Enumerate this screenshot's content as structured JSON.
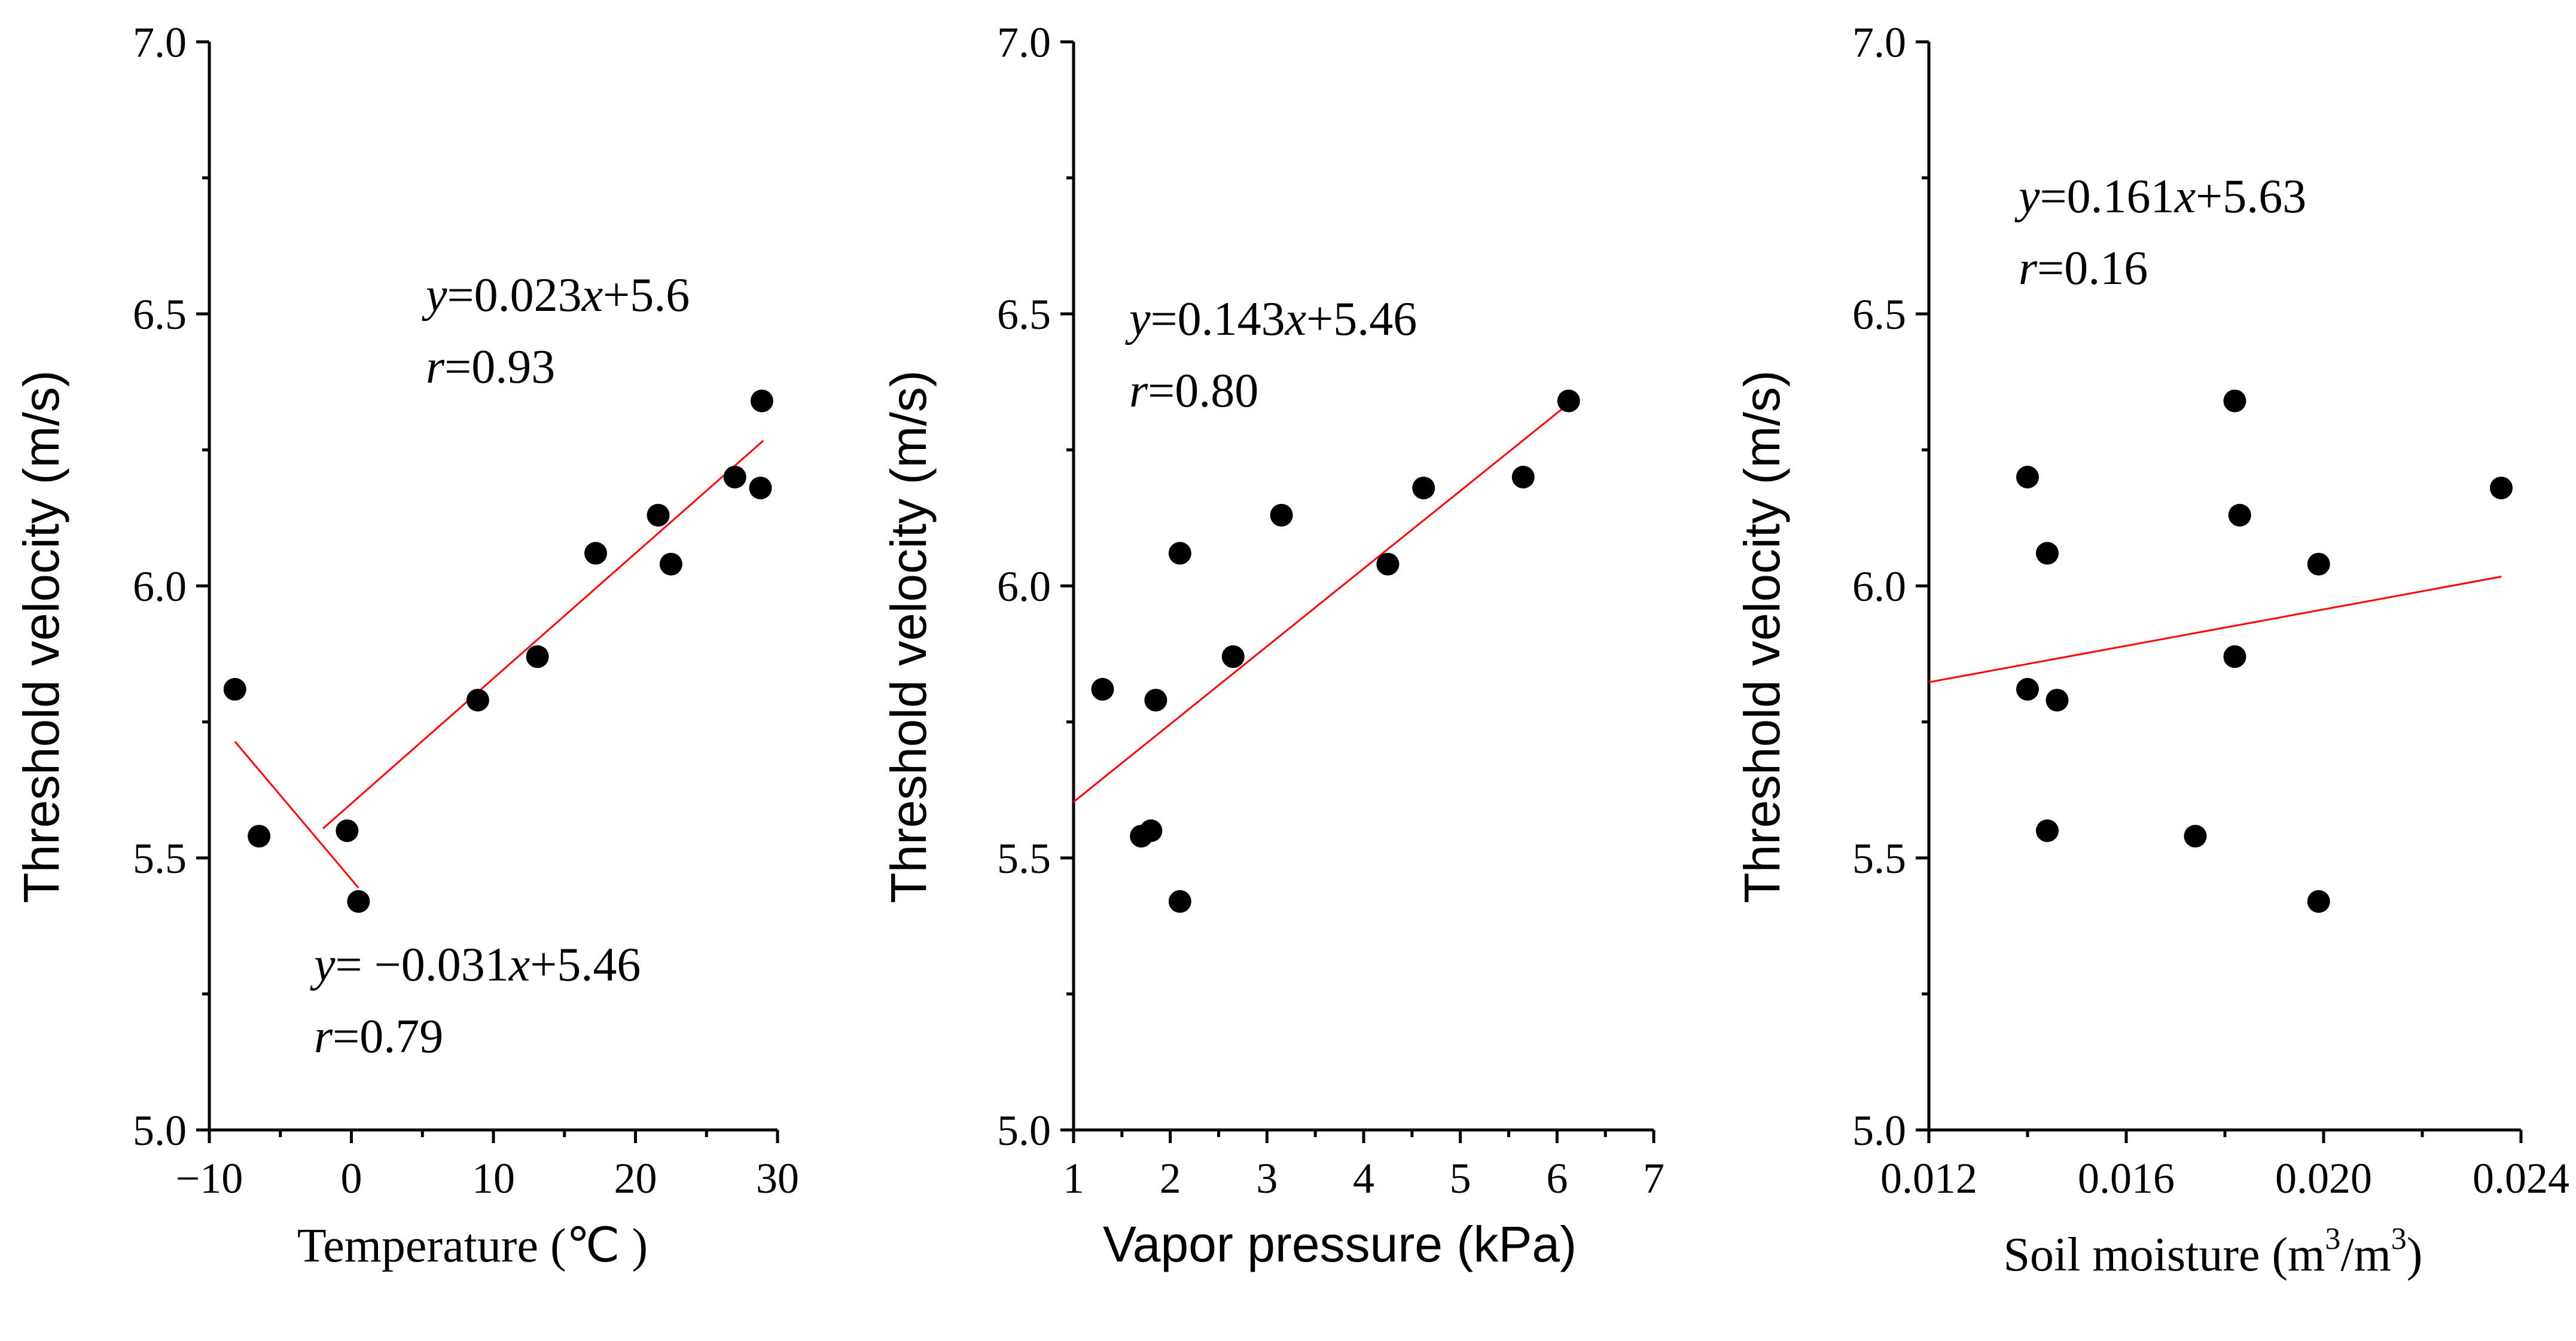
{
  "chart_data": [
    {
      "type": "scatter",
      "xlabel": "Temperature (℃ )",
      "ylabel": "Threshold velocity (m/s)",
      "xlim": [
        -10,
        30
      ],
      "ylim": [
        5.0,
        7.0
      ],
      "xticks": [
        -10,
        0,
        10,
        20,
        30
      ],
      "xtick_labels": [
        "−10",
        "0",
        "10",
        "20",
        "30"
      ],
      "yticks": [
        5.0,
        5.5,
        6.0,
        6.5,
        7.0
      ],
      "ytick_labels": [
        "5.0",
        "5.5",
        "6.0",
        "6.5",
        "7.0"
      ],
      "points": [
        {
          "x": -8.2,
          "y": 5.81
        },
        {
          "x": -6.5,
          "y": 5.54
        },
        {
          "x": -0.3,
          "y": 5.55
        },
        {
          "x": 0.5,
          "y": 5.42
        },
        {
          "x": 8.9,
          "y": 5.79
        },
        {
          "x": 13.1,
          "y": 5.87
        },
        {
          "x": 17.2,
          "y": 6.06
        },
        {
          "x": 21.6,
          "y": 6.13
        },
        {
          "x": 22.5,
          "y": 6.04
        },
        {
          "x": 27.0,
          "y": 6.2
        },
        {
          "x": 28.9,
          "y": 6.34
        },
        {
          "x": 28.8,
          "y": 6.18
        }
      ],
      "fit_lines": [
        {
          "x": [
            -2.0,
            29.0
          ],
          "y": [
            5.554,
            6.267
          ]
        },
        {
          "x": [
            -8.2,
            0.5
          ],
          "y": [
            5.714,
            5.445
          ]
        }
      ],
      "annotations": [
        {
          "eq_y": "y",
          "eq_mid": "=0.023",
          "eq_x": "x",
          "eq_rest": "+5.6",
          "r_r": "r",
          "r_rest": "=0.93"
        },
        {
          "eq_y": "y",
          "eq_mid": "= −0.031",
          "eq_x": "x",
          "eq_rest": "+5.46",
          "r_r": "r",
          "r_rest": "=0.79"
        }
      ]
    },
    {
      "type": "scatter",
      "xlabel": "Vapor pressure (kPa)",
      "ylabel": "Threshold velocity (m/s)",
      "xlim": [
        1,
        7
      ],
      "ylim": [
        5.0,
        7.0
      ],
      "xticks": [
        1,
        2,
        3,
        4,
        5,
        6,
        7
      ],
      "xtick_labels": [
        "1",
        "2",
        "3",
        "4",
        "5",
        "6",
        "7"
      ],
      "yticks": [
        5.0,
        5.5,
        6.0,
        6.5,
        7.0
      ],
      "ytick_labels": [
        "5.0",
        "5.5",
        "6.0",
        "6.5",
        "7.0"
      ],
      "points": [
        {
          "x": 1.3,
          "y": 5.81
        },
        {
          "x": 1.7,
          "y": 5.54
        },
        {
          "x": 1.8,
          "y": 5.55
        },
        {
          "x": 1.85,
          "y": 5.79
        },
        {
          "x": 2.1,
          "y": 6.06
        },
        {
          "x": 2.1,
          "y": 5.42
        },
        {
          "x": 2.65,
          "y": 5.87
        },
        {
          "x": 3.15,
          "y": 6.13
        },
        {
          "x": 4.25,
          "y": 6.04
        },
        {
          "x": 4.62,
          "y": 6.18
        },
        {
          "x": 5.65,
          "y": 6.2
        },
        {
          "x": 6.12,
          "y": 6.34
        }
      ],
      "fit_lines": [
        {
          "x": [
            1.0,
            6.1
          ],
          "y": [
            5.603,
            6.332
          ]
        }
      ],
      "annotations": [
        {
          "eq_y": "y",
          "eq_mid": "=0.143",
          "eq_x": "x",
          "eq_rest": "+5.46",
          "r_r": "r",
          "r_rest": "=0.80"
        }
      ]
    },
    {
      "type": "scatter",
      "xlabel_main": "Soil moisture (m",
      "xlabel_sup1": "3",
      "xlabel_mid": "/m",
      "xlabel_sup2": "3",
      "xlabel_end": ")",
      "ylabel": "Threshold velocity (m/s)",
      "xlim": [
        0.012,
        0.024
      ],
      "ylim": [
        5.0,
        7.0
      ],
      "xticks": [
        0.012,
        0.016,
        0.02,
        0.024
      ],
      "xtick_labels": [
        "0.012",
        "0.016",
        "0.020",
        "0.024"
      ],
      "yticks": [
        5.0,
        5.5,
        6.0,
        6.5,
        7.0
      ],
      "ytick_labels": [
        "5.0",
        "5.5",
        "6.0",
        "6.5",
        "7.0"
      ],
      "points": [
        {
          "x": 0.014,
          "y": 6.2
        },
        {
          "x": 0.014,
          "y": 5.81
        },
        {
          "x": 0.0144,
          "y": 6.06
        },
        {
          "x": 0.0144,
          "y": 5.55
        },
        {
          "x": 0.0146,
          "y": 5.79
        },
        {
          "x": 0.0174,
          "y": 5.54
        },
        {
          "x": 0.0182,
          "y": 6.34
        },
        {
          "x": 0.0183,
          "y": 6.13
        },
        {
          "x": 0.0182,
          "y": 5.87
        },
        {
          "x": 0.0199,
          "y": 6.04
        },
        {
          "x": 0.0199,
          "y": 5.42
        },
        {
          "x": 0.0236,
          "y": 6.18
        }
      ],
      "fit_lines": [
        {
          "x": [
            0.012,
            0.0236
          ],
          "y": [
            5.823,
            6.017
          ]
        }
      ],
      "annotations": [
        {
          "eq_y": "y",
          "eq_mid": "=0.161",
          "eq_x": "x",
          "eq_rest": "+5.63",
          "r_r": "r",
          "r_rest": "=0.16"
        }
      ]
    }
  ]
}
